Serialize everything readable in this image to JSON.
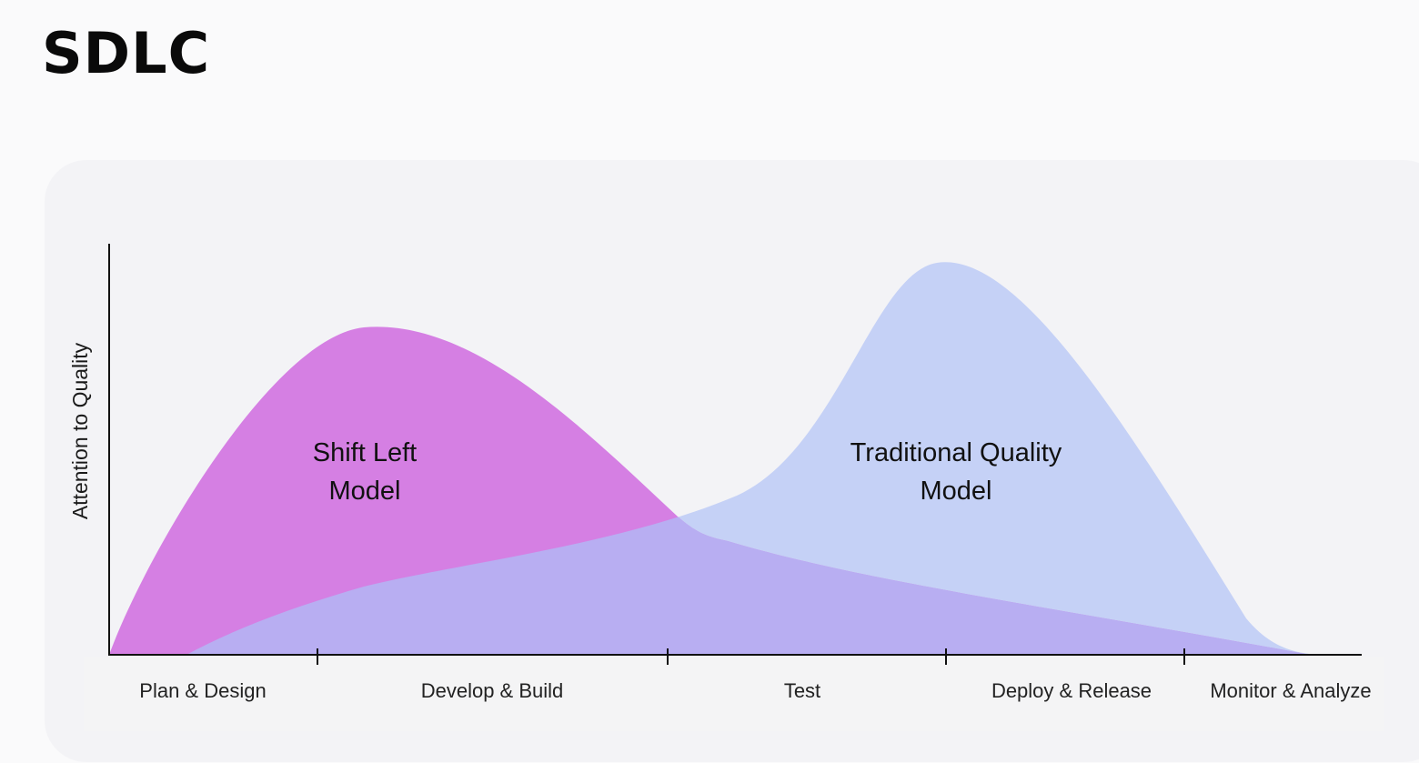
{
  "title": "SDLC",
  "diagram": {
    "y_axis_label": "Attention to Quality",
    "phases": [
      "Plan & Design",
      "Develop & Build",
      "Test",
      "Deploy & Release",
      "Monitor & Analyze"
    ],
    "curves": {
      "shift_left": {
        "label_line1": "Shift Left",
        "label_line2": "Model",
        "color": "#d57fe3"
      },
      "traditional": {
        "label_line1": "Traditional Quality",
        "label_line2": "Model",
        "color": "#b7c6f6"
      }
    },
    "overlap_color": "#b8aef2",
    "axis_color": "#111111"
  }
}
